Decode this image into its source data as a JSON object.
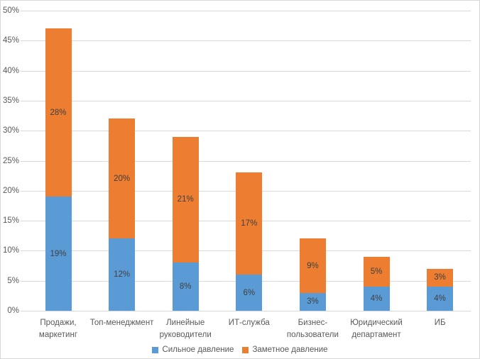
{
  "chart_data": {
    "type": "bar",
    "stacked": true,
    "title": "",
    "xlabel": "",
    "ylabel": "",
    "categories": [
      "Продажи,\nмаркетинг",
      "Топ-менеджмент",
      "Линейные\nруководители",
      "ИТ-служба",
      "Бизнес-\nпользователи",
      "Юридический\nдепартамент",
      "ИБ"
    ],
    "series": [
      {
        "name": "Сильное давление",
        "color": "#5b9bd5",
        "values": [
          19,
          12,
          8,
          6,
          3,
          4,
          4
        ],
        "labels": [
          "19%",
          "12%",
          "8%",
          "6%",
          "3%",
          "4%",
          "4%"
        ]
      },
      {
        "name": "Заметное давление",
        "color": "#ed7d31",
        "values": [
          28,
          20,
          21,
          17,
          9,
          5,
          3
        ],
        "labels": [
          "28%",
          "20%",
          "21%",
          "17%",
          "9%",
          "5%",
          "3%"
        ]
      }
    ],
    "ylim": [
      0,
      50
    ],
    "ytick_step": 5,
    "yticks": [
      "0%",
      "5%",
      "10%",
      "15%",
      "20%",
      "25%",
      "30%",
      "35%",
      "40%",
      "45%",
      "50%"
    ],
    "grid": true,
    "legend_position": "bottom",
    "colors": {
      "gridline": "#d9d9d9",
      "axis_text": "#595959",
      "data_label_text": "#404040",
      "border": "#d7d7d7",
      "background": "#ffffff"
    }
  }
}
